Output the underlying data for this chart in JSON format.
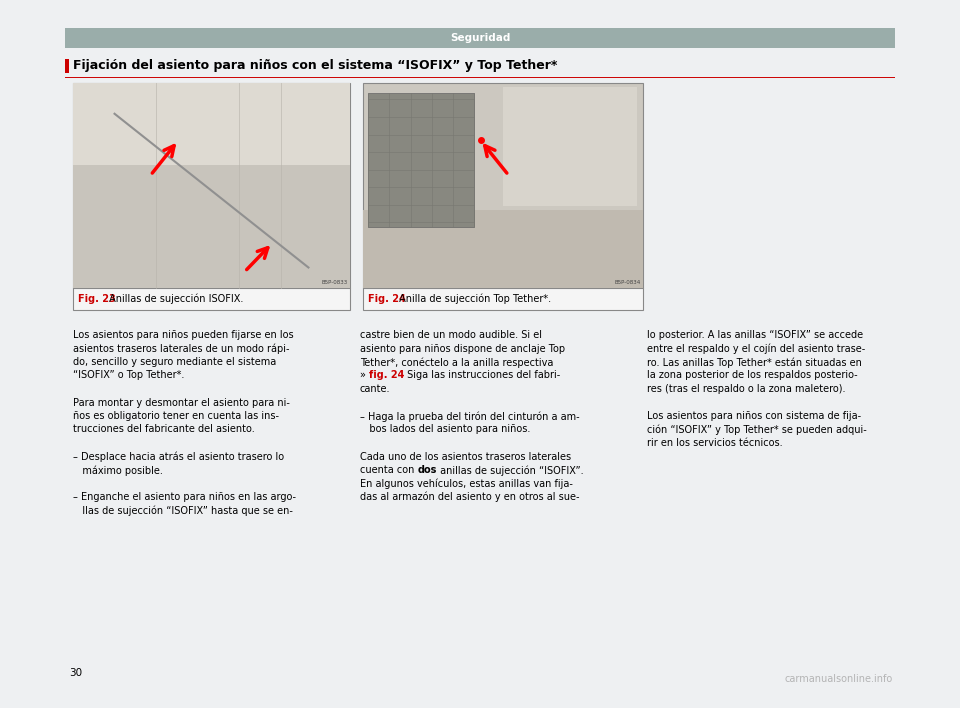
{
  "page_bg": "#eef0f2",
  "content_bg": "#ffffff",
  "header_bg": "#9aadaa",
  "header_text": "Seguridad",
  "header_text_color": "#ffffff",
  "section_title": "Fijación del asiento para niños con el sistema “ISOFIX” y Top Tether*",
  "accent_color": "#cc0000",
  "fig23_caption_bold": "Fig. 23",
  "fig23_caption_rest": " Anillas de sujección ISOFIX.",
  "fig24_caption_bold": "Fig. 24",
  "fig24_caption_rest": " Anilla de sujección Top Tether*.",
  "col1_lines": [
    "Los asientos para niños pueden fijarse en los",
    "asientos traseros laterales de un modo rápi-",
    "do, sencillo y seguro mediante el sistema",
    "“ISOFIX” o Top Tether*.",
    "",
    "Para montar y desmontar el asiento para ni-",
    "ños es obligatorio tener en cuenta las ins-",
    "trucciones del fabricante del asiento.",
    "",
    "– Desplace hacia atrás el asiento trasero lo",
    "   máximo posible.",
    "",
    "– Enganche el asiento para niños en las argo-",
    "   llas de sujección “ISOFIX” hasta que se en-"
  ],
  "col2_lines": [
    "castre bien de un modo audible. Si el",
    "asiento para niños dispone de anclaje Top",
    "Tether*, conéctelo a la anilla respectiva",
    [
      "» ",
      "fig. 24",
      " Siga las instrucciones del fabri-"
    ],
    "cante.",
    "",
    "– Haga la prueba del tirón del cinturón a am-",
    "   bos lados del asiento para niños.",
    "",
    "Cada uno de los asientos traseros laterales",
    [
      "cuenta con ",
      "dos",
      " anillas de sujección “ISOFIX”."
    ],
    "En algunos vehículos, estas anillas van fija-",
    "das al armazón del asiento y en otros al sue-"
  ],
  "col3_lines": [
    "lo posterior. A las anillas “ISOFIX” se accede",
    "entre el respaldo y el cojín del asiento trase-",
    "ro. Las anillas Top Tether* están situadas en",
    "la zona posterior de los respaldos posterio-",
    "res (tras el respaldo o la zona maletero).",
    "",
    "Los asientos para niños con sistema de fija-",
    "ción “ISOFIX” y Top Tether* se pueden adqui-",
    "rir en los servicios técnicos."
  ],
  "page_number": "30",
  "watermark": "carmanualsonline.info",
  "img1_color": "#d0cec8",
  "img2_color": "#c8c6c0"
}
